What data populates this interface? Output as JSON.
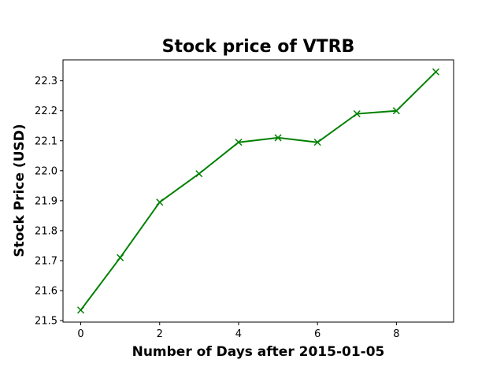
{
  "chart_data": {
    "type": "line",
    "title": "Stock price of VTRB",
    "xlabel": "Number of Days after 2015-01-05",
    "ylabel": "Stock Price (USD)",
    "xlim": [
      -0.45,
      9.45
    ],
    "ylim": [
      21.495,
      22.37
    ],
    "x_ticks": [
      0,
      2,
      4,
      6,
      8
    ],
    "y_ticks": [
      21.5,
      21.6,
      21.7,
      21.8,
      21.9,
      22.0,
      22.1,
      22.2,
      22.3
    ],
    "grid": false,
    "series": [
      {
        "color": "#008000",
        "marker": "x",
        "x": [
          0,
          1,
          2,
          3,
          4,
          5,
          6,
          7,
          8,
          9
        ],
        "values": [
          21.535,
          21.71,
          21.895,
          21.99,
          22.095,
          22.11,
          22.095,
          22.19,
          22.2,
          22.33
        ]
      }
    ]
  }
}
